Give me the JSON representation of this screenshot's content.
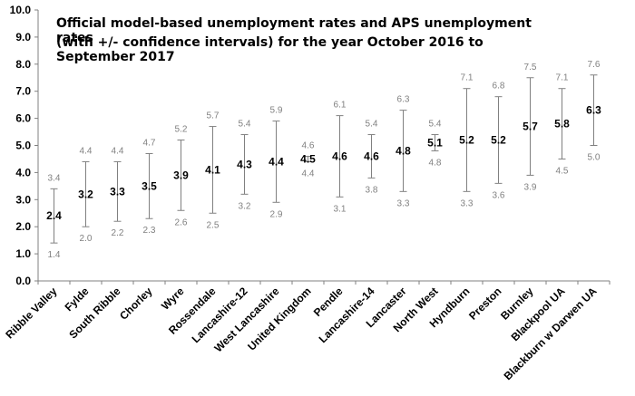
{
  "chart_data": {
    "type": "error-bar",
    "title_lines": [
      "Official model-based unemployment rates and APS unemployment rates",
      "(with +/- confidence intervals) for the year October 2016 to September 2017"
    ],
    "xlabel": "",
    "ylabel": "",
    "ylim": [
      0.0,
      10.0
    ],
    "yticks": [
      "0.0",
      "1.0",
      "2.0",
      "3.0",
      "4.0",
      "5.0",
      "6.0",
      "7.0",
      "8.0",
      "9.0",
      "10.0"
    ],
    "grid": false,
    "categories": [
      "Ribble Valley",
      "Fylde",
      "South Ribble",
      "Chorley",
      "Wyre",
      "Rossendale",
      "Lancashire-12",
      "West Lancashire",
      "United Kingdom",
      "Pendle",
      "Lancashire-14",
      "Lancaster",
      "North West",
      "Hyndburn",
      "Preston",
      "Burnley",
      "Blackpool UA",
      "Blackburn w Darwen UA"
    ],
    "values": [
      "2.4",
      "3.2",
      "3.3",
      "3.5",
      "3.9",
      "4.1",
      "4.3",
      "4.4",
      "4.5",
      "4.6",
      "4.6",
      "4.8",
      "5.1",
      "5.2",
      "5.2",
      "5.7",
      "5.8",
      "6.3"
    ],
    "upper": [
      "3.4",
      "4.4",
      "4.4",
      "4.7",
      "5.2",
      "5.7",
      "5.4",
      "5.9",
      "4.6",
      "6.1",
      "5.4",
      "6.3",
      "5.4",
      "7.1",
      "6.8",
      "7.5",
      "7.1",
      "7.6"
    ],
    "lower": [
      "1.4",
      "2.0",
      "2.2",
      "2.3",
      "2.6",
      "2.5",
      "3.2",
      "2.9",
      "4.4",
      "3.1",
      "3.8",
      "3.3",
      "4.8",
      "3.3",
      "3.6",
      "3.9",
      "4.5",
      "5.0"
    ],
    "colors": {
      "axis": "#808080",
      "bar": "#808080",
      "value_text": "#000000",
      "bound_text": "#808080"
    }
  }
}
